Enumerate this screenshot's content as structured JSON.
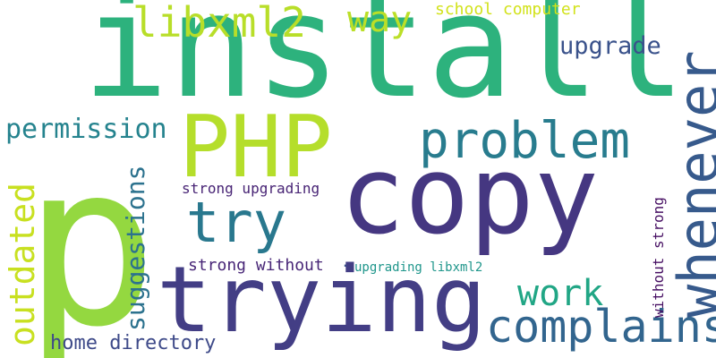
{
  "words": {
    "p": "p",
    "install": "install",
    "copy": "copy",
    "trying": "trying",
    "php": "PHP",
    "whenever": "whenever",
    "problem": "problem",
    "try": "try",
    "complains": "complains",
    "outdated": "outdated",
    "libxml2": "libxml2",
    "way": "way",
    "work": "work",
    "suggestions": "suggestions",
    "permission": "permission",
    "upgrade": "upgrade",
    "home_directory": "home directory",
    "school_computer": "school computer",
    "strong_upgrading": "strong upgrading",
    "strong_without": "strong without",
    "without_strong": "without strong",
    "upgrading_libxml2": "upgrading libxml2",
    "dot": "."
  },
  "colors": {
    "background": "#ffffff",
    "palette": "viridis"
  }
}
